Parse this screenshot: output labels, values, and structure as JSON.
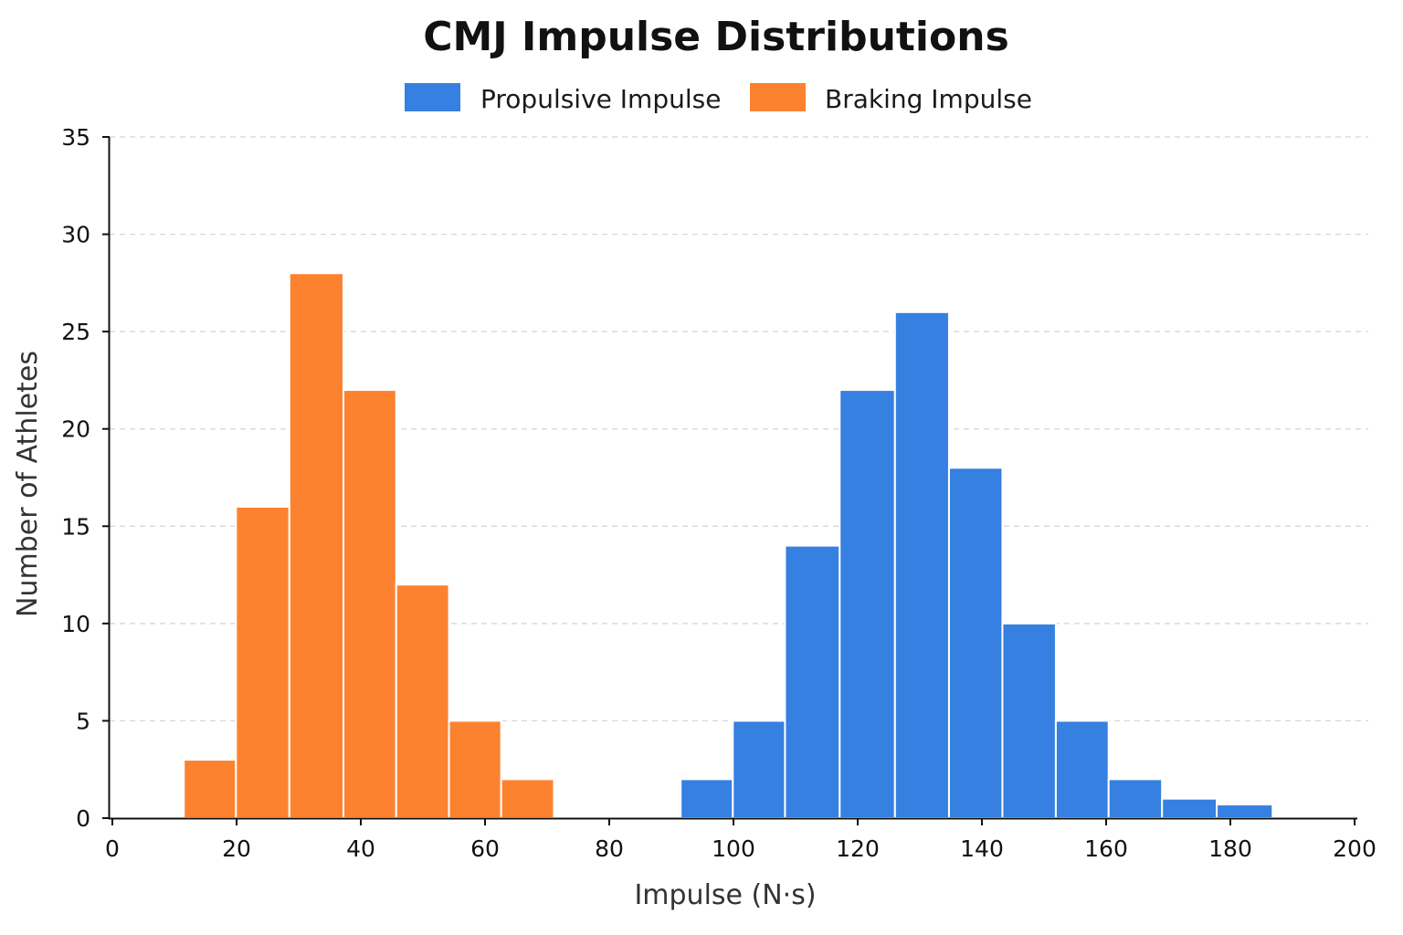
{
  "chart_data": {
    "type": "bar",
    "title": "CMJ Impulse Distributions",
    "xlabel": "Impulse (N·s)",
    "ylabel": "Number of Athletes",
    "xlim": [
      0,
      200
    ],
    "ylim": [
      0,
      35
    ],
    "x_ticks": [
      0,
      20,
      40,
      60,
      80,
      100,
      120,
      140,
      160,
      180,
      200
    ],
    "y_ticks": [
      0,
      5,
      10,
      15,
      20,
      25,
      30,
      35
    ],
    "grid": true,
    "legend_position": "top-center",
    "series": [
      {
        "name": "Propulsive Impulse",
        "color": "#3580e0",
        "bins": [
          {
            "x0": 91.5,
            "x1": 99.9,
            "value": 2
          },
          {
            "x0": 99.9,
            "x1": 108.3,
            "value": 5
          },
          {
            "x0": 108.3,
            "x1": 117.1,
            "value": 14
          },
          {
            "x0": 117.1,
            "x1": 126.0,
            "value": 22
          },
          {
            "x0": 126.0,
            "x1": 134.7,
            "value": 26
          },
          {
            "x0": 134.7,
            "x1": 143.3,
            "value": 18
          },
          {
            "x0": 143.3,
            "x1": 151.9,
            "value": 10
          },
          {
            "x0": 151.9,
            "x1": 160.4,
            "value": 5
          },
          {
            "x0": 160.4,
            "x1": 169.0,
            "value": 2
          },
          {
            "x0": 169.0,
            "x1": 177.8,
            "value": 1
          },
          {
            "x0": 177.8,
            "x1": 186.8,
            "value": 0.7
          }
        ]
      },
      {
        "name": "Braking Impulse",
        "color": "#fd8230",
        "bins": [
          {
            "x0": 11.5,
            "x1": 19.9,
            "value": 3
          },
          {
            "x0": 19.9,
            "x1": 28.5,
            "value": 16
          },
          {
            "x0": 28.5,
            "x1": 37.2,
            "value": 28
          },
          {
            "x0": 37.2,
            "x1": 45.7,
            "value": 22
          },
          {
            "x0": 45.7,
            "x1": 54.2,
            "value": 12
          },
          {
            "x0": 54.2,
            "x1": 62.6,
            "value": 5
          },
          {
            "x0": 62.6,
            "x1": 71.1,
            "value": 2
          }
        ]
      }
    ]
  }
}
